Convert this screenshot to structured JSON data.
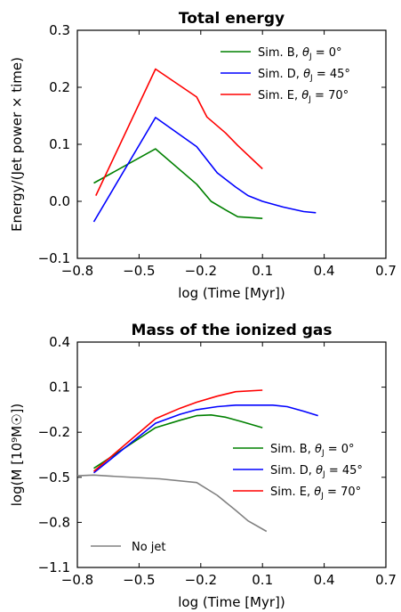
{
  "chart_data": [
    {
      "type": "line",
      "title": "Total energy",
      "xlabel": "log (Time [Myr])",
      "ylabel": "Energy/(Jet power × time)",
      "xlim": [
        -0.8,
        0.7
      ],
      "ylim": [
        -0.1,
        0.3
      ],
      "xticks": [
        -0.8,
        -0.5,
        -0.2,
        0.1,
        0.4,
        0.7
      ],
      "xticklabels": [
        "−0.8",
        "−0.5",
        "−0.2",
        "0.1",
        "0.4",
        "0.7"
      ],
      "yticks": [
        -0.1,
        0.0,
        0.1,
        0.2,
        0.3
      ],
      "yticklabels": [
        "−0.1",
        "0.0",
        "0.1",
        "0.2",
        "0.3"
      ],
      "legend_position": "top-right",
      "series": [
        {
          "name": "Sim. B, θj = 0°",
          "legend": {
            "main": "Sim. B, ",
            "theta": "θ",
            "sub": "J",
            "rest": " = 0°"
          },
          "color": "#008000",
          "x": [
            -0.72,
            -0.42,
            -0.22,
            -0.15,
            -0.08,
            -0.02,
            0.1
          ],
          "y": [
            0.032,
            0.092,
            0.03,
            0.0,
            -0.015,
            -0.027,
            -0.03
          ]
        },
        {
          "name": "Sim. D, θj = 45°",
          "legend": {
            "main": "Sim. D, ",
            "theta": "θ",
            "sub": "J",
            "rest": " = 45°"
          },
          "color": "#0000ff",
          "x": [
            -0.72,
            -0.42,
            -0.22,
            -0.12,
            -0.03,
            0.03,
            0.1,
            0.2,
            0.3,
            0.36
          ],
          "y": [
            -0.036,
            0.147,
            0.096,
            0.05,
            0.025,
            0.01,
            0.0,
            -0.01,
            -0.018,
            -0.02
          ]
        },
        {
          "name": "Sim. E, θj = 70°",
          "legend": {
            "main": "Sim. E, ",
            "theta": "θ",
            "sub": "J",
            "rest": " = 70°"
          },
          "color": "#ff0000",
          "x": [
            -0.71,
            -0.42,
            -0.22,
            -0.17,
            -0.08,
            -0.02,
            0.1
          ],
          "y": [
            0.01,
            0.232,
            0.183,
            0.148,
            0.12,
            0.098,
            0.057
          ]
        }
      ]
    },
    {
      "type": "line",
      "title": "Mass of the ionized gas",
      "xlabel": "log (Time [Myr])",
      "ylabel": "log(M [10⁹M☉])",
      "xlim": [
        -0.8,
        0.7
      ],
      "ylim": [
        -1.1,
        0.4
      ],
      "xticks": [
        -0.8,
        -0.5,
        -0.2,
        0.1,
        0.4,
        0.7
      ],
      "xticklabels": [
        "−0.8",
        "−0.5",
        "−0.2",
        "0.1",
        "0.4",
        "0.7"
      ],
      "yticks": [
        -1.1,
        -0.8,
        -0.5,
        -0.2,
        0.1,
        0.4
      ],
      "yticklabels": [
        "−1.1",
        "−0.8",
        "−0.5",
        "−0.2",
        "0.1",
        "0.4"
      ],
      "legend_position": "center-right",
      "series": [
        {
          "name": "Sim. B, θj = 0°",
          "legend": {
            "main": "Sim. B, ",
            "theta": "θ",
            "sub": "J",
            "rest": " = 0°"
          },
          "color": "#008000",
          "x": [
            -0.72,
            -0.42,
            -0.3,
            -0.22,
            -0.15,
            -0.08,
            0.0,
            0.1
          ],
          "y": [
            -0.44,
            -0.17,
            -0.12,
            -0.09,
            -0.085,
            -0.1,
            -0.13,
            -0.17
          ]
        },
        {
          "name": "Sim. D, θj = 45°",
          "legend": {
            "main": "Sim. D, ",
            "theta": "θ",
            "sub": "J",
            "rest": " = 45°"
          },
          "color": "#0000ff",
          "x": [
            -0.72,
            -0.42,
            -0.3,
            -0.22,
            -0.12,
            -0.03,
            0.05,
            0.15,
            0.22,
            0.3,
            0.37
          ],
          "y": [
            -0.47,
            -0.14,
            -0.08,
            -0.05,
            -0.03,
            -0.02,
            -0.02,
            -0.02,
            -0.03,
            -0.06,
            -0.09
          ]
        },
        {
          "name": "Sim. E, θj = 70°",
          "legend": {
            "main": "Sim. E, ",
            "theta": "θ",
            "sub": "J",
            "rest": " = 70°"
          },
          "color": "#ff0000",
          "x": [
            -0.72,
            -0.42,
            -0.3,
            -0.22,
            -0.12,
            -0.03,
            0.1
          ],
          "y": [
            -0.46,
            -0.11,
            -0.04,
            0.0,
            0.04,
            0.07,
            0.08
          ]
        },
        {
          "name": "No jet",
          "legend": {
            "main": "No jet",
            "theta": "",
            "sub": "",
            "rest": ""
          },
          "color": "#808080",
          "x": [
            -0.8,
            -0.72,
            -0.6,
            -0.4,
            -0.22,
            -0.12,
            -0.03,
            0.03,
            0.12
          ],
          "y": [
            -0.49,
            -0.485,
            -0.495,
            -0.51,
            -0.535,
            -0.62,
            -0.72,
            -0.79,
            -0.86
          ]
        }
      ]
    }
  ]
}
